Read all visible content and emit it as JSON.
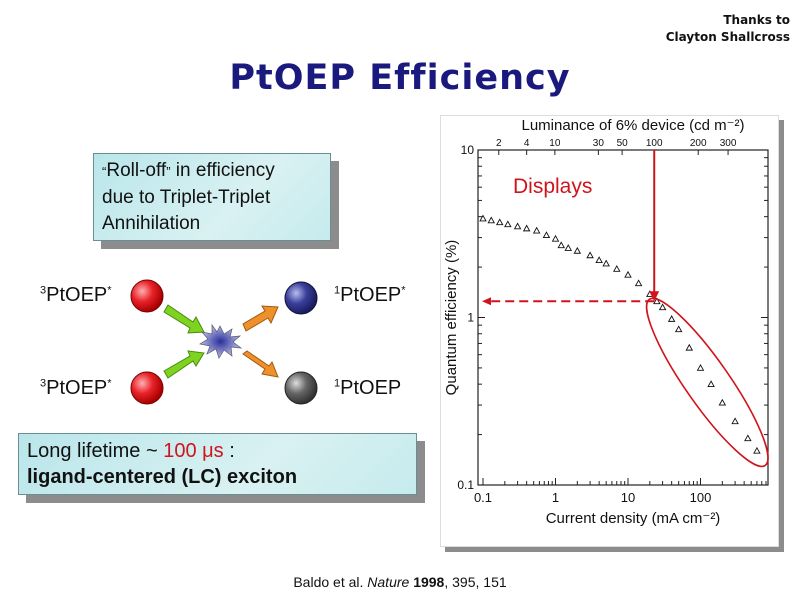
{
  "thanks": {
    "line1": "Thanks to",
    "line2": "Clayton Shallcross"
  },
  "title": "PtOEP Efficiency",
  "callout_top": {
    "open_quote": "“",
    "word": "Roll-off",
    "close_quote": "”",
    "rest1": " in efficiency",
    "line2": "due to Triplet-Triplet",
    "line3": "Annihilation"
  },
  "diagram": {
    "left_top": {
      "sup": "3",
      "name": "PtOEP",
      "star": "*",
      "color": "#e8232a"
    },
    "left_bottom": {
      "sup": "3",
      "name": "PtOEP",
      "star": "*",
      "color": "#e8232a"
    },
    "right_top": {
      "sup": "1",
      "name": "PtOEP",
      "star": "*",
      "color": "#3a3f9a"
    },
    "right_bottom": {
      "sup": "1",
      "name": "PtOEP",
      "color": "#666666"
    },
    "in_arrow_color": "#7ed321",
    "out_arrow_color": "#f0902a",
    "collision_color": "#5a5fb0"
  },
  "callout_bottom": {
    "line1_pre": "Long lifetime ~ ",
    "line1_value": "100 μs",
    "line1_post": " :",
    "line2": "ligand-centered (LC) exciton"
  },
  "citation": {
    "authors": "Baldo et al. ",
    "journal": "Nature",
    "year": " 1998",
    "rest": ", 395, 151"
  },
  "chart_data": {
    "type": "scatter",
    "xlabel": "Current density (mA cm⁻²)",
    "ylabel": "Quantum efficiency (%)",
    "top_axis_label": "Luminance of 6% device (cd m⁻²)",
    "x_scale": "log",
    "y_scale": "log",
    "xlim": [
      0.09,
      800
    ],
    "ylim": [
      0.1,
      10
    ],
    "x_ticks": [
      "0.1",
      "1",
      "10",
      "100"
    ],
    "y_ticks": [
      "0.1",
      "1",
      "10"
    ],
    "top_ticks": [
      {
        "label": "2",
        "current_density": 0.165
      },
      {
        "label": "4",
        "current_density": 0.4
      },
      {
        "label": "10",
        "current_density": 0.98
      },
      {
        "label": "30",
        "current_density": 3.9
      },
      {
        "label": "50",
        "current_density": 8.3
      },
      {
        "label": "100",
        "current_density": 23
      },
      {
        "label": "200",
        "current_density": 93
      },
      {
        "label": "300",
        "current_density": 240
      }
    ],
    "marker": "open-triangle",
    "points": [
      [
        0.1,
        3.9
      ],
      [
        0.13,
        3.8
      ],
      [
        0.17,
        3.7
      ],
      [
        0.22,
        3.6
      ],
      [
        0.3,
        3.5
      ],
      [
        0.4,
        3.4
      ],
      [
        0.55,
        3.3
      ],
      [
        0.75,
        3.1
      ],
      [
        1.0,
        2.95
      ],
      [
        1.2,
        2.7
      ],
      [
        1.5,
        2.6
      ],
      [
        2,
        2.5
      ],
      [
        3,
        2.35
      ],
      [
        4,
        2.2
      ],
      [
        5,
        2.1
      ],
      [
        7,
        1.95
      ],
      [
        10,
        1.8
      ],
      [
        14,
        1.6
      ],
      [
        20,
        1.38
      ],
      [
        25,
        1.25
      ],
      [
        30,
        1.15
      ],
      [
        40,
        0.98
      ],
      [
        50,
        0.85
      ],
      [
        70,
        0.66
      ],
      [
        100,
        0.5
      ],
      [
        140,
        0.4
      ],
      [
        200,
        0.31
      ],
      [
        300,
        0.24
      ],
      [
        450,
        0.19
      ],
      [
        600,
        0.16
      ]
    ],
    "annotation": {
      "label": "Displays",
      "color": "#d0141c",
      "current_density": 23,
      "efficiency": 1.25,
      "ellipse_range": [
        22,
        700
      ]
    }
  }
}
